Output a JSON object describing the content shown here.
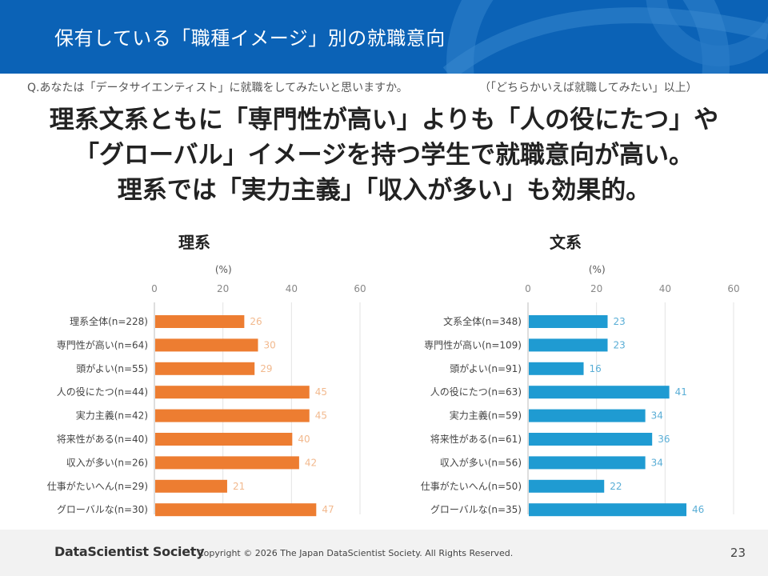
{
  "header": {
    "title": "保有している「職種イメージ」別の就職意向"
  },
  "question": {
    "text": "Q.あなたは「データサイエンティスト」に就職をしてみたいと思いますか。",
    "note": "（「どちらかいえば就職してみたい」以上）"
  },
  "headline": {
    "line1": "理系文系ともに「専門性が高い」よりも「人の役にたつ」や",
    "line2": "「グローバル」イメージを持つ学生で就職意向が高い。",
    "line3": "理系では「実力主義」「収入が多い」も効果的。"
  },
  "chart_data": [
    {
      "type": "bar",
      "orientation": "horizontal",
      "title": "理系",
      "unit": "(%)",
      "xlim": [
        0,
        60
      ],
      "ticks": [
        0,
        20,
        40,
        60
      ],
      "color": "#ed7d31",
      "categories": [
        "理系全体(n=228)",
        "専門性が高い(n=64)",
        "頭がよい(n=55)",
        "人の役にたつ(n=44)",
        "実力主義(n=42)",
        "将来性がある(n=40)",
        "収入が多い(n=26)",
        "仕事がたいへん(n=29)",
        "グローバルな(n=30)"
      ],
      "values": [
        26,
        30,
        29,
        45,
        45,
        40,
        42,
        21,
        47
      ],
      "grid": true
    },
    {
      "type": "bar",
      "orientation": "horizontal",
      "title": "文系",
      "unit": "(%)",
      "xlim": [
        0,
        60
      ],
      "ticks": [
        0,
        20,
        40,
        60
      ],
      "color": "#1f9bd2",
      "categories": [
        "文系全体(n=348)",
        "専門性が高い(n=109)",
        "頭がよい(n=91)",
        "人の役にたつ(n=63)",
        "実力主義(n=59)",
        "将来性がある(n=61)",
        "収入が多い(n=56)",
        "仕事がたいへん(n=50)",
        "グローバルな(n=35)"
      ],
      "values": [
        23,
        23,
        16,
        41,
        34,
        36,
        34,
        22,
        46
      ],
      "grid": true
    }
  ],
  "footer": {
    "logo": "DataScientist Society",
    "copyright": "Copyright © 2026  The Japan DataScientist Society. All Rights Reserved.",
    "page": "23"
  }
}
